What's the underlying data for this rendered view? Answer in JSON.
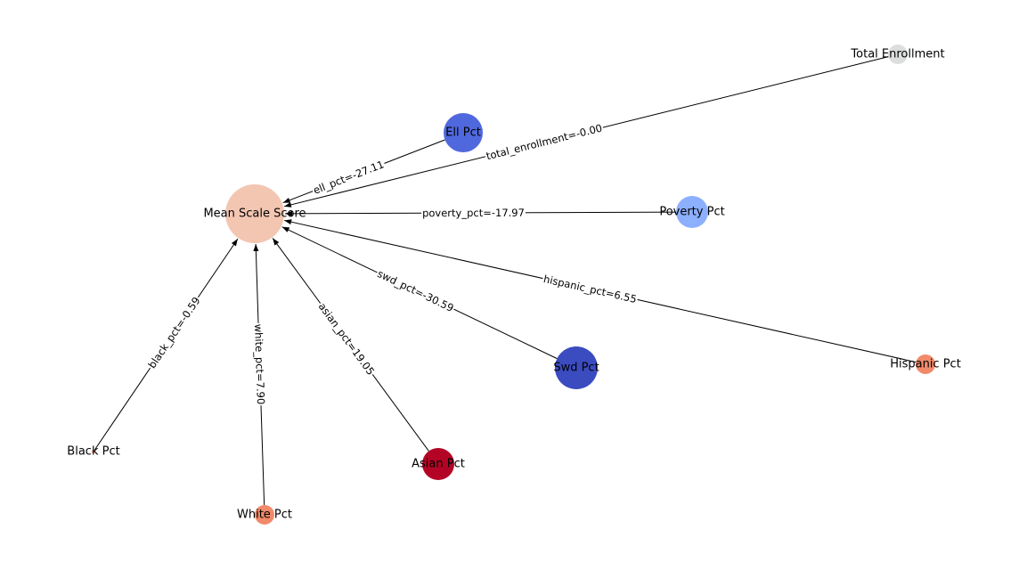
{
  "target": "Mean Scale Score",
  "nodes": [
    {
      "id": "mean",
      "label": "Mean Scale Score",
      "color": "#f3c6b2",
      "size": "xl"
    },
    {
      "id": "total",
      "label": "Total Enrollment",
      "color": "#dcdddd",
      "size": "xs"
    },
    {
      "id": "ell",
      "label": "Ell Pct",
      "color": "#5068de",
      "size": "md"
    },
    {
      "id": "poverty",
      "label": "Poverty Pct",
      "color": "#8caffe",
      "size": "sm"
    },
    {
      "id": "hispanic",
      "label": "Hispanic Pct",
      "color": "#f08a6a",
      "size": "xs"
    },
    {
      "id": "swd",
      "label": "Swd Pct",
      "color": "#3b4cc0",
      "size": "lg"
    },
    {
      "id": "asian",
      "label": "Asian Pct",
      "color": "#b40426",
      "size": "sm"
    },
    {
      "id": "white",
      "label": "White Pct",
      "color": "#f08a6a",
      "size": "xs"
    },
    {
      "id": "black",
      "label": "Black Pct",
      "color": "#f0a487",
      "size": "xxs"
    }
  ],
  "edges": [
    {
      "from": "total",
      "to": "mean",
      "label": "total_enrollment=-0.00"
    },
    {
      "from": "ell",
      "to": "mean",
      "label": "ell_pct=-27.11"
    },
    {
      "from": "poverty",
      "to": "mean",
      "label": "poverty_pct=-17.97"
    },
    {
      "from": "hispanic",
      "to": "mean",
      "label": "hispanic_pct=6.55"
    },
    {
      "from": "swd",
      "to": "mean",
      "label": "swd_pct=-30.59"
    },
    {
      "from": "asian",
      "to": "mean",
      "label": "asian_pct=19.05"
    },
    {
      "from": "white",
      "to": "mean",
      "label": "white_pct=7.90"
    },
    {
      "from": "black",
      "to": "mean",
      "label": "black_pct=-0.59"
    }
  ]
}
